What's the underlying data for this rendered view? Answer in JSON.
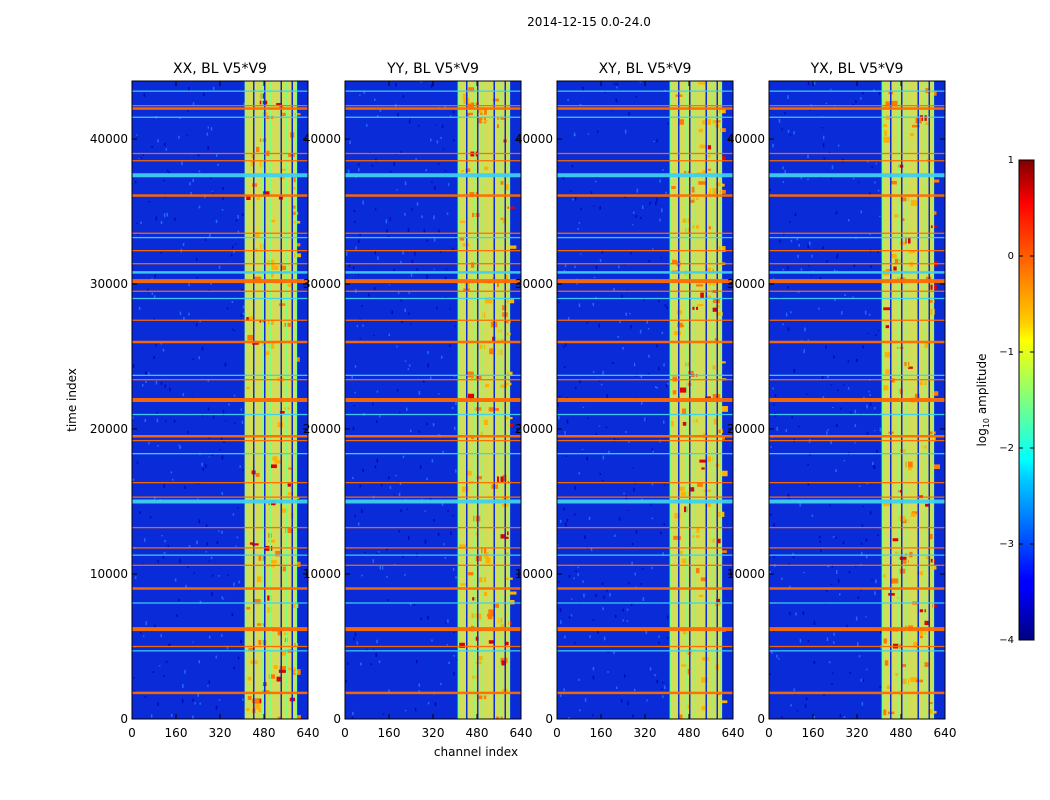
{
  "chart_data": {
    "type": "heatmap",
    "title": "2014-12-15 0.0-24.0",
    "xlabel": "channel index",
    "ylabel": "time index",
    "xlim": [
      0,
      640
    ],
    "ylim": [
      0,
      44000
    ],
    "xticks": [
      0,
      160,
      320,
      480,
      640
    ],
    "yticks": [
      0,
      10000,
      20000,
      30000,
      40000
    ],
    "panels": [
      {
        "title": "XX, BL V5*V9",
        "polarization": "XX"
      },
      {
        "title": "YY, BL V5*V9",
        "polarization": "YY"
      },
      {
        "title": "XY, BL V5*V9",
        "polarization": "XY"
      },
      {
        "title": "YX, BL V5*V9",
        "polarization": "YX"
      }
    ],
    "colorbar": {
      "label": "log10 amplitude",
      "label_base": "log",
      "label_sub": "10",
      "label_rest": " amplitude",
      "range": [
        -4,
        1
      ],
      "ticks": [
        1,
        0,
        -1,
        -2,
        -3,
        -4
      ],
      "tick_labels": [
        "1",
        "0",
        "−1",
        "−2",
        "−3",
        "−4"
      ],
      "colormap": "jet"
    },
    "rfi_channel_band": [
      410,
      600
    ],
    "bright_channel_columns": [
      410,
      440,
      470,
      480,
      500,
      540,
      560,
      580,
      595
    ],
    "horizontal_flag_rows": [
      1800,
      4700,
      5000,
      6200,
      8000,
      9000,
      10600,
      11300,
      11800,
      13200,
      15000,
      15300,
      16300,
      18300,
      19200,
      19500,
      21000,
      22000,
      23400,
      23700,
      26000,
      27500,
      29000,
      29500,
      30200,
      30800,
      31400,
      32300,
      33200,
      33500,
      36100,
      37500,
      38500,
      39000,
      41500,
      42100,
      42300,
      43300
    ]
  },
  "colors": {
    "background_low": "#0a2bd8",
    "band_high": "#e8f24a",
    "flag_orange": "#ff6a00",
    "flag_cyan": "#3fd0f0"
  }
}
